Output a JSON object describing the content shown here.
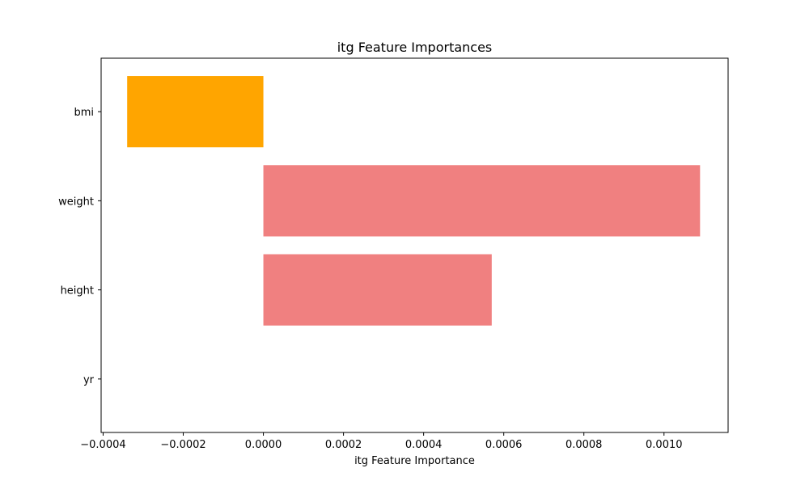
{
  "chart_data": {
    "type": "bar",
    "orientation": "horizontal",
    "title": "itg Feature Importances",
    "xlabel": "itg Feature Importance",
    "ylabel": "",
    "categories": [
      "yr",
      "height",
      "weight",
      "bmi"
    ],
    "values": [
      0.0,
      0.00057,
      0.00109,
      -0.00034
    ],
    "xlim": [
      -0.000405,
      0.00116
    ],
    "xticks": [
      -0.0004,
      -0.0002,
      0.0,
      0.0002,
      0.0004,
      0.0006,
      0.0008,
      0.001
    ],
    "xtick_labels": [
      "−0.0004",
      "−0.0002",
      "0.0000",
      "0.0002",
      "0.0004",
      "0.0006",
      "0.0008",
      "0.0010"
    ],
    "grid": false,
    "legend": "none",
    "colors": {
      "positive": "#f08080",
      "negative": "#ffa500",
      "axis": "#000000"
    }
  }
}
